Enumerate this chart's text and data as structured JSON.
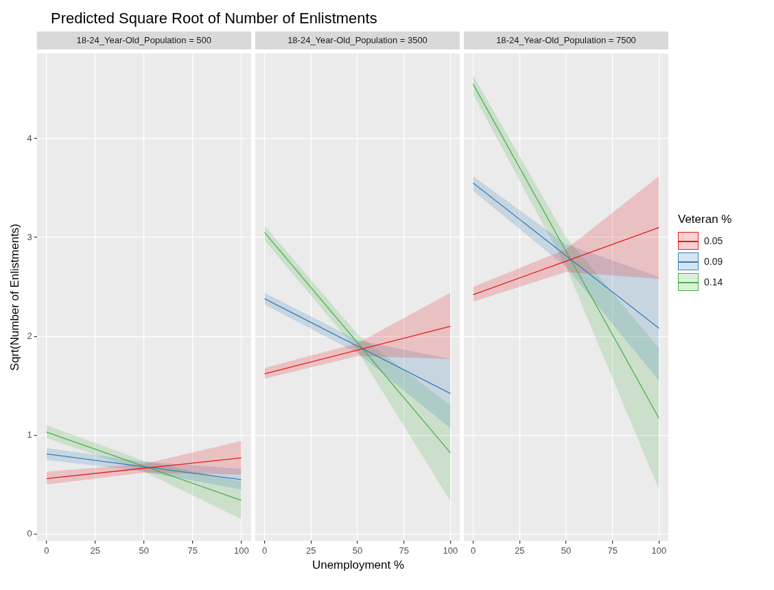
{
  "chart_data": [
    {
      "type": "line",
      "title": "Predicted Square Root of Number of Enlistments",
      "subtitle": "18-24_Year-Old_Population = 500",
      "ylabel": "Sqrt(Number of Enlistments)",
      "xlim": [
        -5,
        105
      ],
      "xticks": [
        0,
        25,
        50,
        75,
        100
      ],
      "ylim": [
        -0.07,
        4.86
      ],
      "yticks": [
        0,
        1,
        2,
        3,
        4
      ],
      "grid": true,
      "marker": "none",
      "series": [
        {
          "color": "#e41a1c",
          "x": [
            0,
            50,
            100
          ],
          "values": [
            0.56,
            0.665,
            0.77
          ],
          "lower": [
            0.5,
            0.62,
            0.6
          ],
          "upper": [
            0.63,
            0.71,
            0.94
          ]
        },
        {
          "color": "#377eb8",
          "x": [
            0,
            50,
            100
          ],
          "values": [
            0.81,
            0.68,
            0.55
          ],
          "lower": [
            0.75,
            0.63,
            0.45
          ],
          "upper": [
            0.87,
            0.73,
            0.66
          ]
        },
        {
          "color": "#4daf4a",
          "x": [
            0,
            50,
            100
          ],
          "values": [
            1.03,
            0.685,
            0.34
          ],
          "lower": [
            0.97,
            0.63,
            0.15
          ],
          "upper": [
            1.1,
            0.74,
            0.53
          ]
        }
      ]
    },
    {
      "type": "line",
      "subtitle": "18-24_Year-Old_Population = 3500",
      "xlabel": "Unemployment %",
      "xlim": [
        -5,
        105
      ],
      "xticks": [
        0,
        25,
        50,
        75,
        100
      ],
      "ylim": [
        -0.07,
        4.86
      ],
      "yticks": [
        0,
        1,
        2,
        3,
        4
      ],
      "tick_labels": "x",
      "grid": true,
      "marker": "none",
      "series": [
        {
          "color": "#e41a1c",
          "x": [
            0,
            50,
            100
          ],
          "values": [
            1.62,
            1.86,
            2.1
          ],
          "lower": [
            1.57,
            1.8,
            1.77
          ],
          "upper": [
            1.68,
            1.93,
            2.44
          ]
        },
        {
          "color": "#377eb8",
          "x": [
            0,
            50,
            100
          ],
          "values": [
            2.38,
            1.9,
            1.42
          ],
          "lower": [
            2.32,
            1.83,
            1.07
          ],
          "upper": [
            2.44,
            1.96,
            1.77
          ]
        },
        {
          "color": "#4daf4a",
          "x": [
            0,
            50,
            100
          ],
          "values": [
            3.05,
            1.935,
            0.82
          ],
          "lower": [
            2.97,
            1.85,
            0.33
          ],
          "upper": [
            3.12,
            2.02,
            1.3
          ]
        }
      ]
    },
    {
      "type": "line",
      "subtitle": "18-24_Year-Old_Population = 7500",
      "legend": "right",
      "legend_title": "Veteran %",
      "xlim": [
        -5,
        105
      ],
      "xticks": [
        0,
        25,
        50,
        75,
        100
      ],
      "ylim": [
        -0.07,
        4.86
      ],
      "yticks": [
        0,
        1,
        2,
        3,
        4
      ],
      "tick_labels": "x",
      "grid": true,
      "marker": "none",
      "series": [
        {
          "name": "0.05",
          "color": "#e41a1c",
          "x": [
            0,
            50,
            100
          ],
          "values": [
            2.42,
            2.76,
            3.1
          ],
          "lower": [
            2.35,
            2.65,
            2.58
          ],
          "upper": [
            2.5,
            2.88,
            3.62
          ]
        },
        {
          "name": "0.09",
          "color": "#377eb8",
          "x": [
            0,
            50,
            100
          ],
          "values": [
            3.55,
            2.815,
            2.08
          ],
          "lower": [
            3.47,
            2.7,
            1.55
          ],
          "upper": [
            3.62,
            2.93,
            2.6
          ]
        },
        {
          "name": "0.14",
          "color": "#4daf4a",
          "x": [
            0,
            50,
            100
          ],
          "values": [
            4.55,
            2.86,
            1.17
          ],
          "lower": [
            4.45,
            2.7,
            0.45
          ],
          "upper": [
            4.64,
            3.0,
            1.88
          ]
        }
      ]
    }
  ]
}
